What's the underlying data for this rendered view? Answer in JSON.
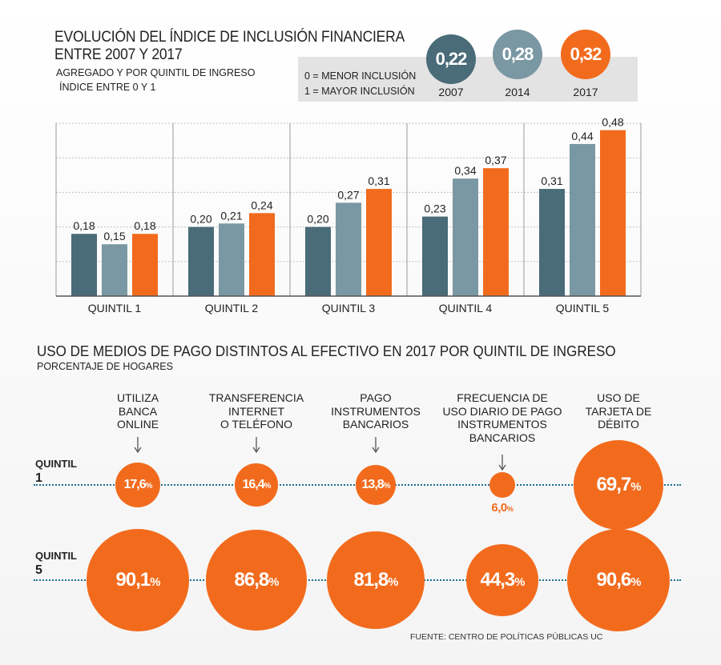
{
  "header": {
    "title_line1": "EVOLUCIÓN DEL ÍNDICE DE INCLUSIÓN FINANCIERA",
    "title_line2": "ENTRE 2007 Y 2017",
    "subtitle1": "AGREGADO Y POR QUINTIL DE INGRESO",
    "subtitle2": "ÍNDICE ENTRE 0 Y 1"
  },
  "legend": {
    "min_text": "0 = MENOR INCLUSIÓN",
    "max_text": "1 = MAYOR INCLUSIÓN"
  },
  "aggregate": [
    {
      "year": "2007",
      "value_label": "0,22",
      "color": "#4a6b78"
    },
    {
      "year": "2014",
      "value_label": "0,28",
      "color": "#7a98a3"
    },
    {
      "year": "2017",
      "value_label": "0,32",
      "color": "#f26b1d"
    }
  ],
  "colors": {
    "y2007": "#4a6b78",
    "y2014": "#7a98a3",
    "y2017": "#f26b1d",
    "bubble": "#f26b1d",
    "line": "#1a6d8e"
  },
  "chart_data": [
    {
      "type": "bar",
      "title": "EVOLUCIÓN DEL ÍNDICE DE INCLUSIÓN FINANCIERA ENTRE 2007 Y 2017",
      "categories": [
        "QUINTIL 1",
        "QUINTIL 2",
        "QUINTIL 3",
        "QUINTIL 4",
        "QUINTIL 5"
      ],
      "series": [
        {
          "name": "2007",
          "values": [
            0.18,
            0.2,
            0.2,
            0.23,
            0.31
          ],
          "labels": [
            "0,18",
            "0,20",
            "0,20",
            "0,23",
            "0,31"
          ]
        },
        {
          "name": "2014",
          "values": [
            0.15,
            0.21,
            0.27,
            0.34,
            0.44
          ],
          "labels": [
            "0,15",
            "0,21",
            "0,27",
            "0,34",
            "0,44"
          ]
        },
        {
          "name": "2017",
          "values": [
            0.18,
            0.24,
            0.31,
            0.37,
            0.48
          ],
          "labels": [
            "0,18",
            "0,24",
            "0,31",
            "0,37",
            "0,48"
          ]
        }
      ],
      "ylim": [
        0,
        0.5
      ],
      "grid": true,
      "xlabel": "",
      "ylabel": ""
    },
    {
      "type": "bubble",
      "title": "USO DE MEDIOS DE PAGO DISTINTOS AL EFECTIVO EN 2017 POR QUINTIL DE INGRESO",
      "subtitle": "PORCENTAJE DE HOGARES",
      "categories": [
        "UTILIZA BANCA ONLINE",
        "TRANSFERENCIA INTERNET O TELÉFONO",
        "PAGO INSTRUMENTOS BANCARIOS",
        "FRECUENCIA DE USO DIARIO DE PAGO INSTRUMENTOS BANCARIOS",
        "USO DE TARJETA DE DÉBITO"
      ],
      "series": [
        {
          "name": "QUINTIL 1",
          "values": [
            17.6,
            16.4,
            13.8,
            6.0,
            69.7
          ],
          "labels": [
            "17,6",
            "16,4",
            "13,8",
            "6,0",
            "69,7"
          ]
        },
        {
          "name": "QUINTIL 5",
          "values": [
            90.1,
            86.8,
            81.8,
            44.3,
            90.6
          ],
          "labels": [
            "90,1",
            "86,8",
            "81,8",
            "44,3",
            "90,6"
          ]
        }
      ],
      "unit": "%"
    }
  ],
  "section2": {
    "title": "USO DE MEDIOS DE PAGO DISTINTOS AL EFECTIVO EN 2017 POR QUINTIL DE INGRESO",
    "subtitle": "PORCENTAJE DE HOGARES",
    "column_headers": [
      [
        "UTILIZA",
        "BANCA",
        "ONLINE"
      ],
      [
        "TRANSFERENCIA",
        "INTERNET",
        "O TELÉFONO"
      ],
      [
        "PAGO",
        "INSTRUMENTOS",
        "BANCARIOS"
      ],
      [
        "FRECUENCIA DE",
        "USO DIARIO DE PAGO",
        "INSTRUMENTOS",
        "BANCARIOS"
      ],
      [
        "USO DE",
        "TARJETA DE",
        "DÉBITO"
      ]
    ],
    "row_labels": [
      {
        "word": "QUINTIL",
        "num": "1"
      },
      {
        "word": "QUINTIL",
        "num": "5"
      }
    ],
    "percent_sign": "%"
  },
  "footer": {
    "source": "FUENTE: CENTRO DE POLÍTICAS PÚBLICAS UC"
  }
}
